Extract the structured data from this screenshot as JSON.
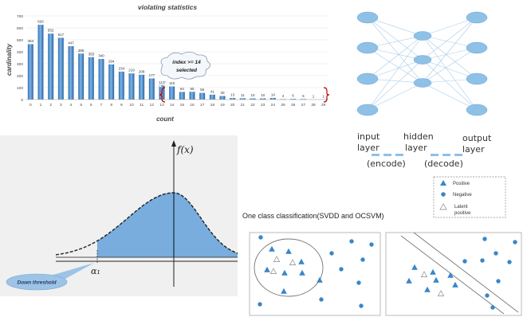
{
  "bar_chart": {
    "title": "violating statistics",
    "xlabel": "count",
    "ylabel": "cardinality",
    "annotation": "index >= 14 selected",
    "chart_data": {
      "type": "bar",
      "categories": [
        "0",
        "1",
        "2",
        "3",
        "4",
        "5",
        "6",
        "7",
        "8",
        "9",
        "10",
        "11",
        "12",
        "13",
        "14",
        "15",
        "16",
        "17",
        "18",
        "19",
        "20",
        "21",
        "22",
        "23",
        "24",
        "25",
        "26",
        "27",
        "28",
        "29"
      ],
      "values": [
        464,
        626,
        552,
        517,
        447,
        385,
        355,
        340,
        294,
        234,
        219,
        208,
        177,
        117,
        110,
        64,
        65,
        56,
        41,
        30,
        13,
        11,
        10,
        10,
        14,
        4,
        6,
        5,
        1,
        1
      ],
      "yticks": [
        0,
        100,
        200,
        300,
        400,
        500,
        600,
        700
      ],
      "ylim": [
        0,
        700
      ]
    }
  },
  "autoencoder": {
    "input_label": "input layer",
    "hidden_label": "hidden layer",
    "output_label": "output layer",
    "encode_label": "(encode)",
    "decode_label": "(decode)",
    "color": "#8fc0e6"
  },
  "density_plot": {
    "fx_label": "f(x)",
    "alpha_label": "α₁",
    "threshold_label": "Down threshold",
    "fill_color": "#5b9bd5"
  },
  "classification": {
    "title": "One class classification(SVDD and OCSVM)",
    "legend": {
      "positive": "Positive",
      "negative": "Negative",
      "latent": "Latent positive"
    },
    "point_color": "#3a86c8"
  }
}
